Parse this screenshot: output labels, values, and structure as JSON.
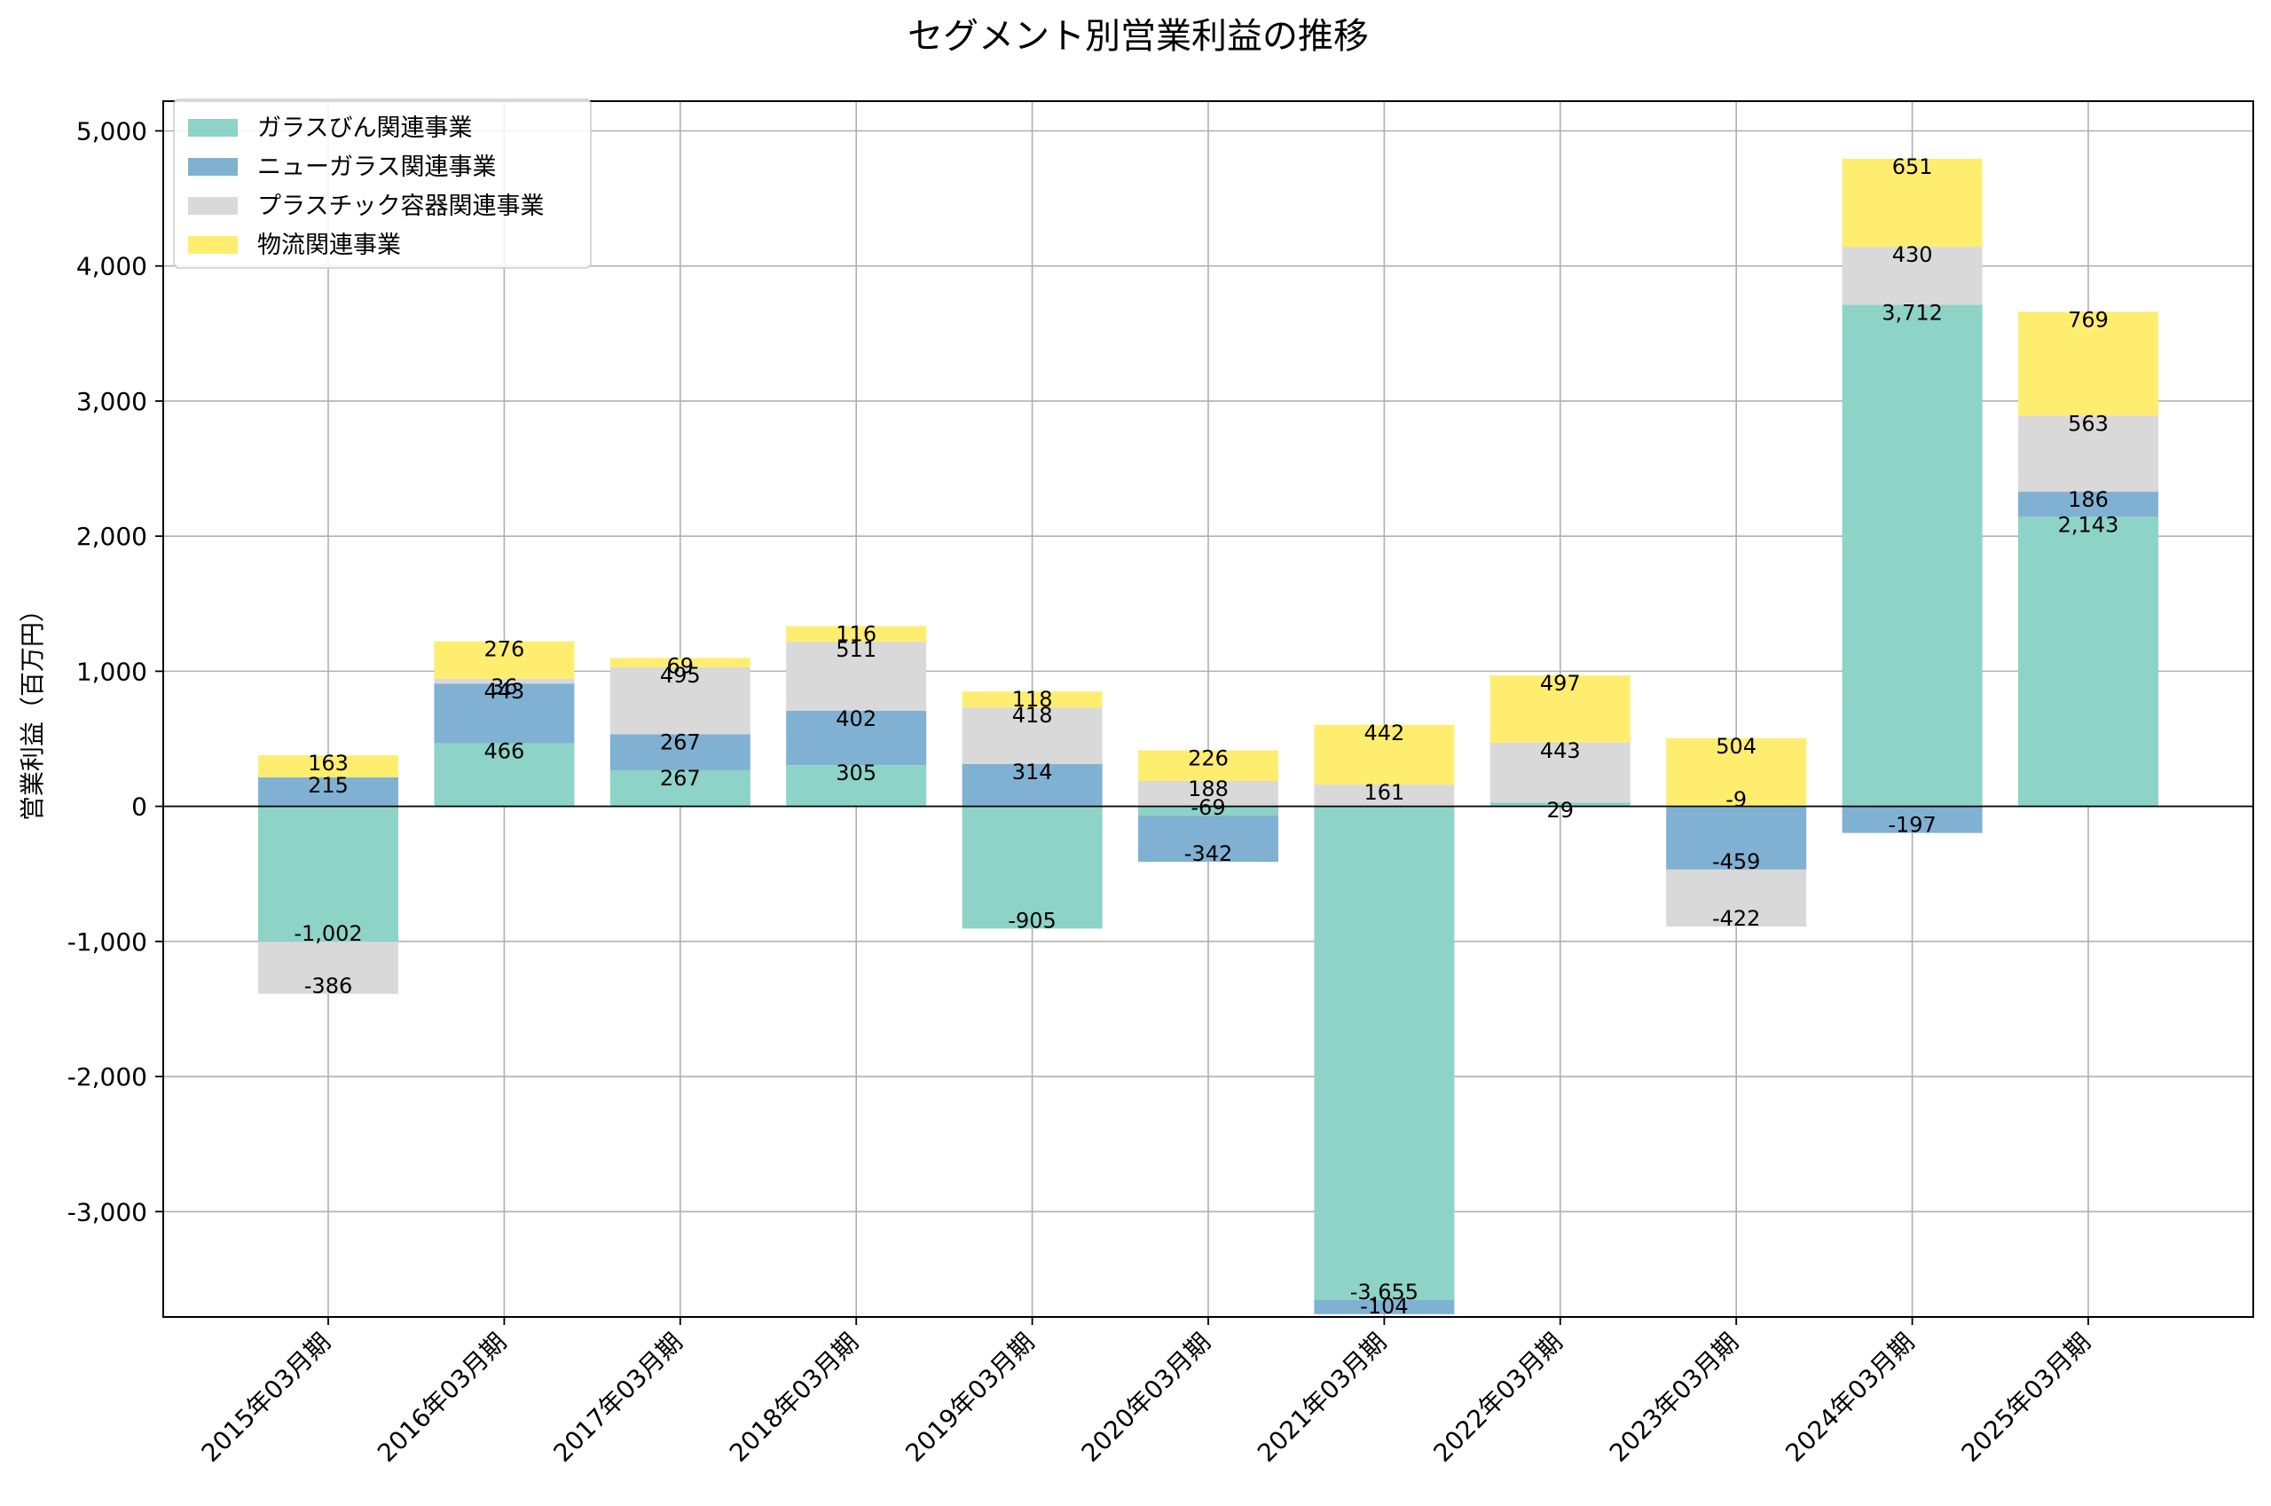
{
  "chart_data": {
    "type": "bar",
    "stacked": true,
    "title": "セグメント別営業利益の推移",
    "ylabel": "営業利益（百万円）",
    "xlabel": "",
    "ylim": [
      -3780,
      5220
    ],
    "yticks": [
      -3000,
      -2000,
      -1000,
      0,
      1000,
      2000,
      3000,
      4000,
      5000
    ],
    "ytick_labels": [
      "-3,000",
      "-2,000",
      "-1,000",
      "0",
      "1,000",
      "2,000",
      "3,000",
      "4,000",
      "5,000"
    ],
    "grid": true,
    "legend_position": "top-left",
    "categories": [
      "2015年03月期",
      "2016年03月期",
      "2017年03月期",
      "2018年03月期",
      "2019年03月期",
      "2020年03月期",
      "2021年03月期",
      "2022年03月期",
      "2023年03月期",
      "2024年03月期",
      "2025年03月期"
    ],
    "series": [
      {
        "name": "ガラスびん関連事業",
        "color": "#8dd3c7",
        "values": [
          -1002,
          466,
          267,
          305,
          -905,
          -69,
          -3655,
          29,
          -9,
          3712,
          2143
        ]
      },
      {
        "name": "ニューガラス関連事業",
        "color": "#80b1d3",
        "values": [
          215,
          443,
          267,
          402,
          314,
          -342,
          -104,
          0,
          -459,
          -197,
          186
        ]
      },
      {
        "name": "プラスチック容器関連事業",
        "color": "#d9d9d9",
        "values": [
          -386,
          36,
          495,
          511,
          418,
          188,
          161,
          443,
          -422,
          430,
          563
        ]
      },
      {
        "name": "物流関連事業",
        "color": "#ffed6f",
        "values": [
          163,
          276,
          69,
          116,
          118,
          226,
          442,
          497,
          504,
          651,
          769
        ]
      }
    ],
    "labels": [
      [
        "-1,002",
        "466",
        "267",
        "305",
        "-905",
        "-69",
        "-3,655",
        "29",
        "-9",
        "3,712",
        "2,143"
      ],
      [
        "215",
        "443",
        "267",
        "402",
        "314",
        "-342",
        "-104",
        "",
        "-459",
        "-197",
        "186"
      ],
      [
        "-386",
        "36",
        "495",
        "511",
        "418",
        "188",
        "161",
        "443",
        "-422",
        "430",
        "563"
      ],
      [
        "163",
        "276",
        "69",
        "116",
        "118",
        "226",
        "442",
        "497",
        "504",
        "651",
        "769"
      ]
    ]
  }
}
